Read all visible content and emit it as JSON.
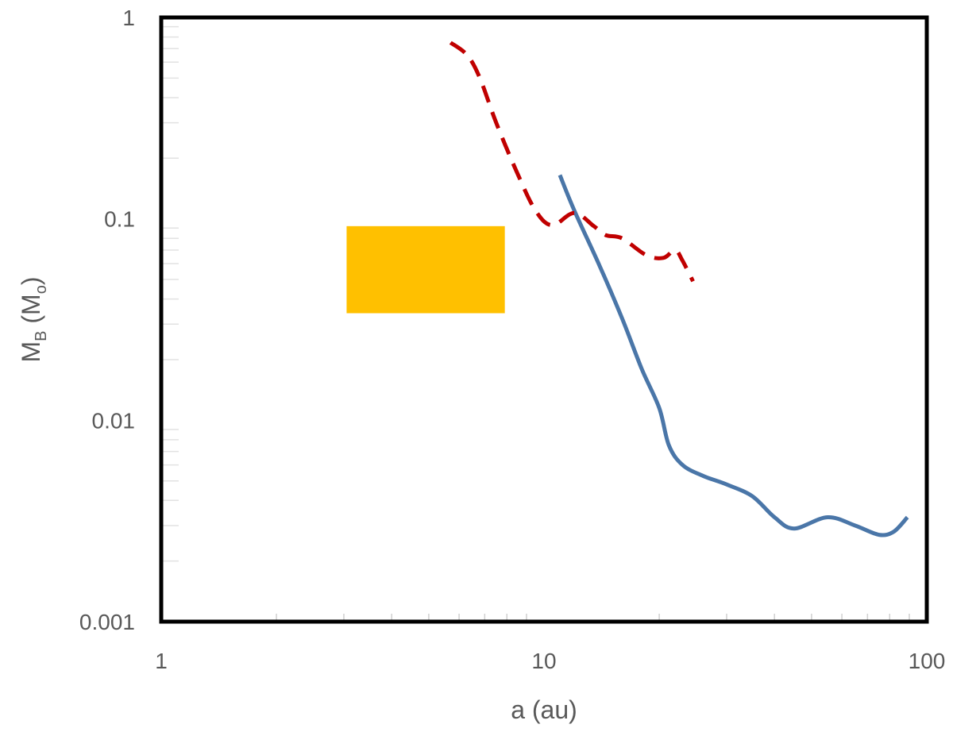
{
  "chart_data": {
    "type": "line",
    "title": "",
    "xlabel": "a (au)",
    "ylabel_parts": {
      "base": "M",
      "sub": "B",
      "paren_open": " (M",
      "paren_sub": "o",
      "paren_close": ")"
    },
    "x_scale": "log",
    "y_scale": "log",
    "xlim": [
      1,
      100
    ],
    "ylim": [
      0.001,
      1
    ],
    "x_ticks": [
      {
        "value": 1,
        "label": "1"
      },
      {
        "value": 10,
        "label": "10"
      },
      {
        "value": 100,
        "label": "100"
      }
    ],
    "y_ticks": [
      {
        "value": 1,
        "label": "1"
      },
      {
        "value": 0.1,
        "label": "0.1"
      },
      {
        "value": 0.01,
        "label": "0.01"
      },
      {
        "value": 0.001,
        "label": "0.001"
      }
    ],
    "grid": false,
    "legend": "none",
    "series": [
      {
        "color": "#4A76A8",
        "style": "solid",
        "points": [
          [
            11.0,
            0.165
          ],
          [
            12.0,
            0.11
          ],
          [
            14.0,
            0.058
          ],
          [
            16.0,
            0.032
          ],
          [
            18.0,
            0.018
          ],
          [
            20.0,
            0.0115
          ],
          [
            21.2,
            0.0075
          ],
          [
            23.0,
            0.006
          ],
          [
            26.0,
            0.0053
          ],
          [
            30.0,
            0.0048
          ],
          [
            35.0,
            0.0042
          ],
          [
            40.0,
            0.0033
          ],
          [
            45.0,
            0.0029
          ],
          [
            55.0,
            0.0033
          ],
          [
            65.0,
            0.003
          ],
          [
            75.0,
            0.0027
          ],
          [
            82.0,
            0.0028
          ],
          [
            89.0,
            0.0033
          ]
        ]
      },
      {
        "color": "#C00000",
        "style": "dashed",
        "points": [
          [
            5.7,
            0.75
          ],
          [
            6.3,
            0.65
          ],
          [
            6.8,
            0.5
          ],
          [
            7.5,
            0.3
          ],
          [
            8.5,
            0.17
          ],
          [
            9.5,
            0.11
          ],
          [
            10.5,
            0.093
          ],
          [
            12.0,
            0.107
          ],
          [
            13.5,
            0.092
          ],
          [
            14.5,
            0.083
          ],
          [
            16.0,
            0.08
          ],
          [
            18.5,
            0.066
          ],
          [
            20.5,
            0.064
          ],
          [
            22.0,
            0.07
          ],
          [
            23.0,
            0.062
          ],
          [
            24.5,
            0.049
          ]
        ]
      }
    ],
    "regions": [
      {
        "color": "#FFC000",
        "x": [
          3.05,
          7.9
        ],
        "y": [
          0.034,
          0.092
        ]
      }
    ]
  }
}
